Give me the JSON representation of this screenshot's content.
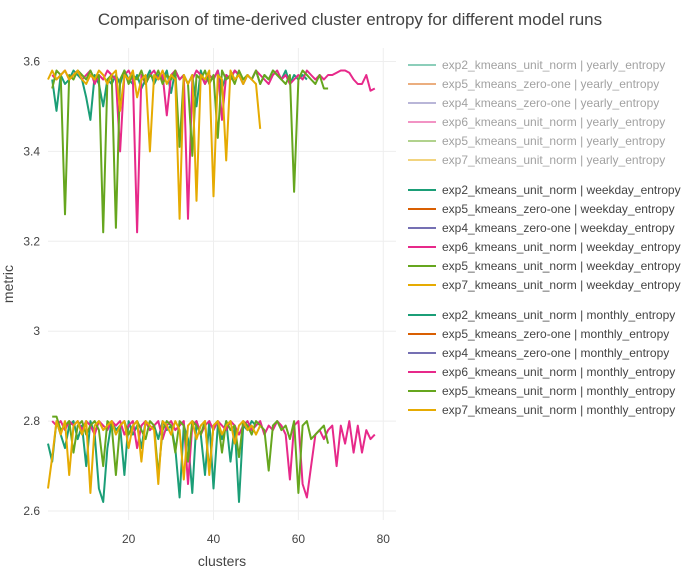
{
  "chart_data": {
    "type": "line",
    "title": "Comparison of time-derived cluster entropy for different model runs",
    "xlabel": "clusters",
    "ylabel": "metric",
    "xlim": [
      1,
      83
    ],
    "ylim": [
      2.58,
      3.63
    ],
    "x_ticks": [
      20,
      40,
      60,
      80
    ],
    "x_tick_labels": [
      "20",
      "40",
      "60",
      "80"
    ],
    "y_ticks": [
      2.6,
      2.8,
      3.0,
      3.2,
      3.4,
      3.6
    ],
    "y_tick_labels": [
      "2.6",
      "2.8",
      "3",
      "3.2",
      "3.4",
      "3.6"
    ],
    "grid": true,
    "legend_position": "right",
    "colors": {
      "exp2": "#1b9e77",
      "exp5_zero": "#d95f02",
      "exp4": "#7570b3",
      "exp6": "#e7298a",
      "exp5_unit": "#66a61e",
      "exp7": "#e6ab02"
    },
    "legend_groups": [
      {
        "group": "yearly_entropy",
        "faded": true,
        "entries": [
          {
            "label": "exp2_kmeans_unit_norm | yearly_entropy",
            "color": "#1b9e77"
          },
          {
            "label": "exp5_kmeans_zero-one | yearly_entropy",
            "color": "#d95f02"
          },
          {
            "label": "exp4_kmeans_zero-one | yearly_entropy",
            "color": "#7570b3"
          },
          {
            "label": "exp6_kmeans_unit_norm | yearly_entropy",
            "color": "#e7298a"
          },
          {
            "label": "exp5_kmeans_unit_norm | yearly_entropy",
            "color": "#66a61e"
          },
          {
            "label": "exp7_kmeans_unit_norm | yearly_entropy",
            "color": "#e6ab02"
          }
        ]
      },
      {
        "group": "weekday_entropy",
        "faded": false,
        "entries": [
          {
            "label": "exp2_kmeans_unit_norm | weekday_entropy",
            "color": "#1b9e77"
          },
          {
            "label": "exp5_kmeans_zero-one | weekday_entropy",
            "color": "#d95f02"
          },
          {
            "label": "exp4_kmeans_zero-one | weekday_entropy",
            "color": "#7570b3"
          },
          {
            "label": "exp6_kmeans_unit_norm | weekday_entropy",
            "color": "#e7298a"
          },
          {
            "label": "exp5_kmeans_unit_norm | weekday_entropy",
            "color": "#66a61e"
          },
          {
            "label": "exp7_kmeans_unit_norm | weekday_entropy",
            "color": "#e6ab02"
          }
        ]
      },
      {
        "group": "monthly_entropy",
        "faded": false,
        "entries": [
          {
            "label": "exp2_kmeans_unit_norm | monthly_entropy",
            "color": "#1b9e77"
          },
          {
            "label": "exp5_kmeans_zero-one | monthly_entropy",
            "color": "#d95f02"
          },
          {
            "label": "exp4_kmeans_zero-one | monthly_entropy",
            "color": "#7570b3"
          },
          {
            "label": "exp6_kmeans_unit_norm | monthly_entropy",
            "color": "#e7298a"
          },
          {
            "label": "exp5_kmeans_unit_norm | monthly_entropy",
            "color": "#66a61e"
          },
          {
            "label": "exp7_kmeans_unit_norm | monthly_entropy",
            "color": "#e6ab02"
          }
        ]
      }
    ],
    "series": [
      {
        "name": "exp2_kmeans_unit_norm | weekday_entropy",
        "color": "#1b9e77",
        "x": [
          2,
          3,
          4,
          5,
          6,
          7,
          8,
          9,
          10,
          11,
          12,
          13,
          14,
          15,
          16,
          17,
          18,
          19,
          20,
          21,
          22,
          23,
          24,
          25,
          26,
          27,
          28,
          29,
          30,
          31,
          32,
          33,
          34,
          35,
          36,
          37,
          38,
          39,
          40,
          41,
          42,
          43,
          44,
          45,
          46,
          47,
          48,
          49,
          50,
          51,
          52,
          53,
          54,
          55,
          56,
          57,
          58,
          59,
          60,
          61,
          62
        ],
        "y": [
          3.56,
          3.49,
          3.57,
          3.55,
          3.56,
          3.58,
          3.57,
          3.56,
          3.52,
          3.47,
          3.57,
          3.55,
          3.5,
          3.56,
          3.55,
          3.57,
          3.55,
          3.58,
          3.56,
          3.55,
          3.57,
          3.54,
          3.56,
          3.58,
          3.55,
          3.57,
          3.56,
          3.58,
          3.53,
          3.58,
          3.56,
          3.57,
          3.55,
          3.57,
          3.5,
          3.58,
          3.55,
          3.57,
          3.56,
          3.58,
          3.54,
          3.57,
          3.56,
          3.58,
          3.57,
          3.55,
          3.57,
          3.56,
          3.58,
          3.55,
          3.57,
          3.56,
          3.58,
          3.57,
          3.56,
          3.58,
          3.55,
          3.57,
          3.56,
          3.57,
          3.56
        ]
      },
      {
        "name": "exp6_kmeans_unit_norm | weekday_entropy",
        "color": "#e7298a",
        "x": [
          2,
          3,
          4,
          5,
          6,
          7,
          8,
          9,
          10,
          11,
          12,
          13,
          14,
          15,
          16,
          17,
          18,
          19,
          20,
          21,
          22,
          23,
          24,
          25,
          26,
          27,
          28,
          29,
          30,
          31,
          32,
          33,
          34,
          35,
          36,
          37,
          38,
          39,
          40,
          41,
          42,
          43,
          44,
          45,
          46,
          47,
          48,
          49,
          50,
          51,
          52,
          53,
          54,
          55,
          56,
          57,
          58,
          59,
          60,
          61,
          62,
          63,
          64,
          65,
          66,
          67,
          68,
          69,
          70,
          71,
          72,
          73,
          74,
          75,
          76,
          77,
          78
        ],
        "y": [
          3.57,
          3.56,
          3.57,
          3.58,
          3.56,
          3.57,
          3.58,
          3.56,
          3.57,
          3.58,
          3.55,
          3.57,
          3.56,
          3.58,
          3.57,
          3.56,
          3.4,
          3.57,
          3.58,
          3.56,
          3.22,
          3.57,
          3.55,
          3.57,
          3.58,
          3.56,
          3.57,
          3.48,
          3.57,
          3.58,
          3.56,
          3.57,
          3.25,
          3.56,
          3.58,
          3.57,
          3.55,
          3.57,
          3.56,
          3.58,
          3.47,
          3.57,
          3.56,
          3.58,
          3.57,
          3.55,
          3.57,
          3.56,
          3.58,
          3.57,
          3.56,
          3.55,
          3.57,
          3.58,
          3.56,
          3.57,
          3.55,
          3.56,
          3.57,
          3.56,
          3.58,
          3.57,
          3.56,
          3.57,
          3.56,
          3.57,
          3.57,
          3.575,
          3.58,
          3.58,
          3.575,
          3.56,
          3.55,
          3.55,
          3.57,
          3.535,
          3.54
        ]
      },
      {
        "name": "exp5_kmeans_unit_norm | weekday_entropy",
        "color": "#66a61e",
        "x": [
          2,
          3,
          4,
          5,
          6,
          7,
          8,
          9,
          10,
          11,
          12,
          13,
          14,
          15,
          16,
          17,
          18,
          19,
          20,
          21,
          22,
          23,
          24,
          25,
          26,
          27,
          28,
          29,
          30,
          31,
          32,
          33,
          34,
          35,
          36,
          37,
          38,
          39,
          40,
          41,
          42,
          43,
          44,
          45,
          46,
          47,
          48,
          49,
          50,
          51,
          52,
          53,
          54,
          55,
          56,
          57,
          58,
          59,
          60,
          61,
          62,
          63,
          64,
          65,
          66,
          67
        ],
        "y": [
          3.54,
          3.58,
          3.57,
          3.26,
          3.57,
          3.56,
          3.58,
          3.57,
          3.56,
          3.58,
          3.56,
          3.57,
          3.22,
          3.56,
          3.57,
          3.23,
          3.56,
          3.58,
          3.55,
          3.57,
          3.56,
          3.58,
          3.55,
          3.57,
          3.56,
          3.58,
          3.55,
          3.57,
          3.56,
          3.58,
          3.41,
          3.57,
          3.55,
          3.39,
          3.57,
          3.56,
          3.58,
          3.55,
          3.57,
          3.43,
          3.58,
          3.56,
          3.57,
          3.55,
          3.58,
          3.56,
          3.57,
          3.56,
          3.58,
          3.55,
          3.57,
          3.56,
          3.58,
          3.57,
          3.56,
          3.55,
          3.57,
          3.31,
          3.56,
          3.58,
          3.57,
          3.56,
          3.55,
          3.57,
          3.54,
          3.54
        ]
      },
      {
        "name": "exp7_kmeans_unit_norm | weekday_entropy",
        "color": "#e6ab02",
        "x": [
          1,
          2,
          3,
          4,
          5,
          6,
          7,
          8,
          9,
          10,
          11,
          12,
          13,
          14,
          15,
          16,
          17,
          18,
          19,
          20,
          21,
          22,
          23,
          24,
          25,
          26,
          27,
          28,
          29,
          30,
          31,
          32,
          33,
          34,
          35,
          36,
          37,
          38,
          39,
          40,
          41,
          42,
          43,
          44,
          45,
          46,
          47,
          48,
          49,
          50,
          51
        ],
        "y": [
          3.56,
          3.58,
          3.56,
          3.57,
          3.58,
          3.56,
          3.57,
          3.58,
          3.56,
          3.55,
          3.57,
          3.56,
          3.58,
          3.57,
          3.55,
          3.57,
          3.58,
          3.49,
          3.57,
          3.56,
          3.58,
          3.52,
          3.56,
          3.57,
          3.4,
          3.57,
          3.56,
          3.58,
          3.55,
          3.57,
          3.56,
          3.25,
          3.57,
          3.55,
          3.57,
          3.29,
          3.57,
          3.56,
          3.58,
          3.3,
          3.57,
          3.56,
          3.38,
          3.58,
          3.56,
          3.57,
          3.55,
          3.57,
          3.56,
          3.55,
          3.45
        ]
      },
      {
        "name": "exp2_kmeans_unit_norm | monthly_entropy",
        "color": "#1b9e77",
        "x": [
          1,
          2,
          3,
          4,
          5,
          6,
          7,
          8,
          9,
          10,
          11,
          12,
          13,
          14,
          15,
          16,
          17,
          18,
          19,
          20,
          21,
          22,
          23,
          24,
          25,
          26,
          27,
          28,
          29,
          30,
          31,
          32,
          33,
          34,
          35,
          36,
          37,
          38,
          39,
          40,
          41,
          42,
          43,
          44,
          45,
          46,
          47,
          48,
          49,
          50
        ],
        "y": [
          2.75,
          2.71,
          2.8,
          2.77,
          2.74,
          2.79,
          2.8,
          2.76,
          2.79,
          2.7,
          2.8,
          2.77,
          2.65,
          2.62,
          2.74,
          2.8,
          2.78,
          2.79,
          2.68,
          2.8,
          2.77,
          2.79,
          2.74,
          2.8,
          2.78,
          2.79,
          2.76,
          2.8,
          2.78,
          2.79,
          2.74,
          2.63,
          2.79,
          2.76,
          2.64,
          2.8,
          2.77,
          2.68,
          2.8,
          2.65,
          2.79,
          2.76,
          2.8,
          2.71,
          2.79,
          2.62,
          2.79,
          2.78,
          2.8,
          2.79
        ]
      },
      {
        "name": "exp6_kmeans_unit_norm | monthly_entropy",
        "color": "#e7298a",
        "x": [
          2,
          3,
          4,
          5,
          6,
          7,
          8,
          9,
          10,
          11,
          12,
          13,
          14,
          15,
          16,
          17,
          18,
          19,
          20,
          21,
          22,
          23,
          24,
          25,
          26,
          27,
          28,
          29,
          30,
          31,
          32,
          33,
          34,
          35,
          36,
          37,
          38,
          39,
          40,
          41,
          42,
          43,
          44,
          45,
          46,
          47,
          48,
          49,
          50,
          51,
          52,
          53,
          54,
          55,
          56,
          57,
          58,
          59,
          60,
          61,
          62,
          63,
          64,
          65,
          66,
          67,
          68,
          69,
          70,
          71,
          72,
          73,
          74,
          75,
          76,
          77,
          78
        ],
        "y": [
          2.8,
          2.79,
          2.8,
          2.78,
          2.8,
          2.79,
          2.8,
          2.78,
          2.8,
          2.79,
          2.77,
          2.8,
          2.79,
          2.78,
          2.8,
          2.79,
          2.8,
          2.77,
          2.79,
          2.8,
          2.74,
          2.79,
          2.8,
          2.78,
          2.79,
          2.8,
          2.76,
          2.79,
          2.8,
          2.78,
          2.79,
          2.8,
          2.66,
          2.79,
          2.8,
          2.77,
          2.79,
          2.8,
          2.78,
          2.8,
          2.79,
          2.78,
          2.8,
          2.79,
          2.77,
          2.79,
          2.8,
          2.78,
          2.79,
          2.8,
          2.77,
          2.79,
          2.78,
          2.8,
          2.79,
          2.77,
          2.67,
          2.79,
          2.8,
          2.66,
          2.63,
          2.7,
          2.77,
          2.78,
          2.76,
          2.78,
          2.79,
          2.7,
          2.79,
          2.75,
          2.8,
          2.73,
          2.79,
          2.73,
          2.78,
          2.76,
          2.77
        ]
      },
      {
        "name": "exp5_kmeans_unit_norm | monthly_entropy",
        "color": "#66a61e",
        "x": [
          2,
          3,
          4,
          5,
          6,
          7,
          8,
          9,
          10,
          11,
          12,
          13,
          14,
          15,
          16,
          17,
          18,
          19,
          20,
          21,
          22,
          23,
          24,
          25,
          26,
          27,
          28,
          29,
          30,
          31,
          32,
          33,
          34,
          35,
          36,
          37,
          38,
          39,
          40,
          41,
          42,
          43,
          44,
          45,
          46,
          47,
          48,
          49,
          50,
          51,
          52,
          53,
          54,
          55,
          56,
          57,
          58,
          59,
          60,
          61,
          62,
          63,
          64,
          65,
          66,
          67
        ],
        "y": [
          2.81,
          2.81,
          2.78,
          2.79,
          2.8,
          2.73,
          2.79,
          2.8,
          2.77,
          2.79,
          2.8,
          2.78,
          2.7,
          2.8,
          2.79,
          2.68,
          2.79,
          2.8,
          2.77,
          2.79,
          2.8,
          2.78,
          2.76,
          2.8,
          2.79,
          2.68,
          2.78,
          2.8,
          2.79,
          2.73,
          2.8,
          2.79,
          2.71,
          2.8,
          2.79,
          2.77,
          2.8,
          2.69,
          2.79,
          2.8,
          2.73,
          2.8,
          2.78,
          2.79,
          2.72,
          2.8,
          2.79,
          2.77,
          2.8,
          2.79,
          2.78,
          2.69,
          2.79,
          2.8,
          2.78,
          2.79,
          2.76,
          2.8,
          2.64,
          2.79,
          2.8,
          2.76,
          2.77,
          2.78,
          2.79,
          2.75
        ]
      },
      {
        "name": "exp7_kmeans_unit_norm | monthly_entropy",
        "color": "#e6ab02",
        "x": [
          1,
          2,
          3,
          4,
          5,
          6,
          7,
          8,
          9,
          10,
          11,
          12,
          13,
          14,
          15,
          16,
          17,
          18,
          19,
          20,
          21,
          22,
          23,
          24,
          25,
          26,
          27,
          28,
          29,
          30,
          31,
          32,
          33,
          34,
          35,
          36,
          37,
          38,
          39,
          40,
          41,
          42,
          43,
          44,
          45,
          46,
          47,
          48,
          49,
          50,
          51
        ],
        "y": [
          2.65,
          2.72,
          2.8,
          2.77,
          2.8,
          2.68,
          2.79,
          2.8,
          2.77,
          2.8,
          2.64,
          2.79,
          2.8,
          2.78,
          2.79,
          2.8,
          2.77,
          2.79,
          2.8,
          2.74,
          2.79,
          2.8,
          2.71,
          2.8,
          2.79,
          2.78,
          2.66,
          2.8,
          2.79,
          2.77,
          2.8,
          2.78,
          2.67,
          2.79,
          2.8,
          2.76,
          2.79,
          2.8,
          2.68,
          2.79,
          2.8,
          2.77,
          2.79,
          2.8,
          2.75,
          2.79,
          2.8,
          2.78,
          2.79,
          2.77,
          2.79
        ]
      }
    ]
  }
}
